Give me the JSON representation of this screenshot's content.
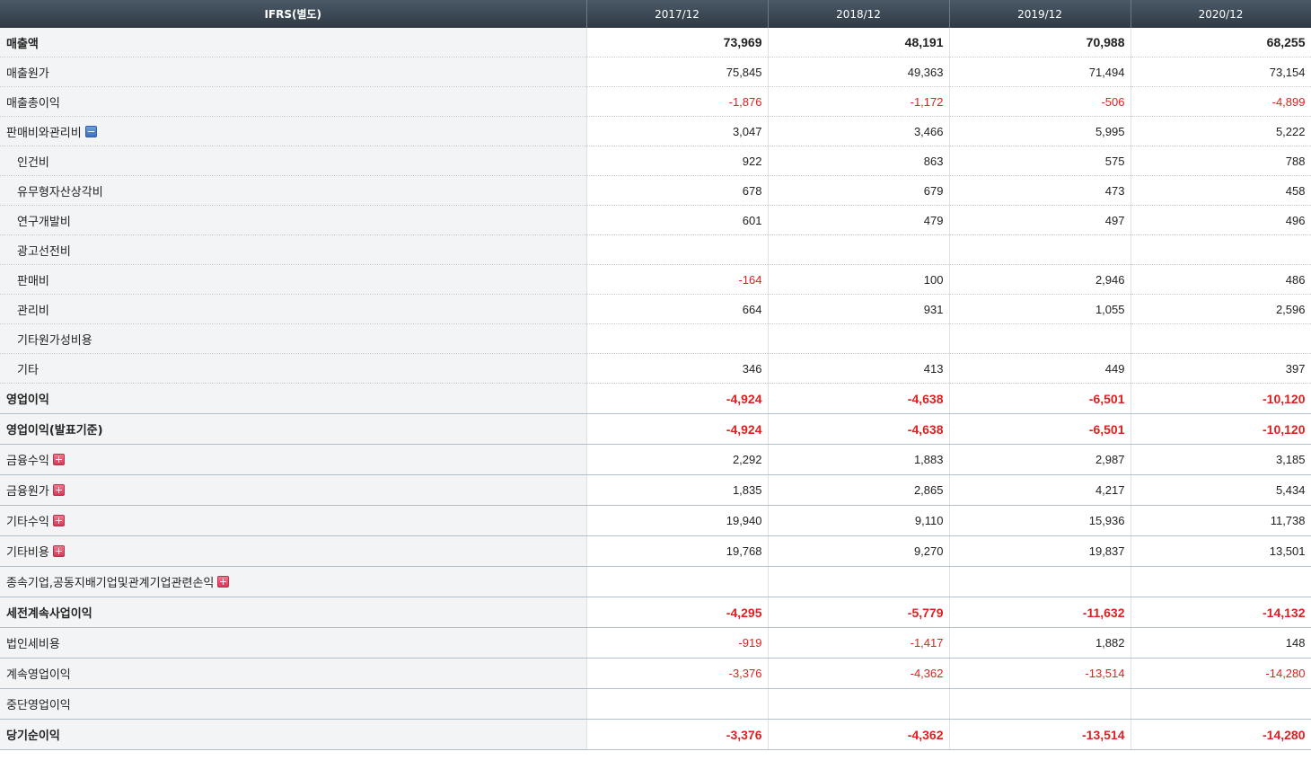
{
  "header": {
    "label": "IFRS(별도)",
    "periods": [
      "2017/12",
      "2018/12",
      "2019/12",
      "2020/12"
    ]
  },
  "rows": [
    {
      "label": "매출액",
      "values": [
        "73,969",
        "48,191",
        "70,988",
        "68,255"
      ]
    },
    {
      "label": "매출원가",
      "values": [
        "75,845",
        "49,363",
        "71,494",
        "73,154"
      ]
    },
    {
      "label": "매출총이익",
      "values": [
        "-1,876",
        "-1,172",
        "-506",
        "-4,899"
      ]
    },
    {
      "label": "판매비와관리비",
      "values": [
        "3,047",
        "3,466",
        "5,995",
        "5,222"
      ],
      "toggle": "collapse"
    },
    {
      "label": "인건비",
      "values": [
        "922",
        "863",
        "575",
        "788"
      ]
    },
    {
      "label": "유무형자산상각비",
      "values": [
        "678",
        "679",
        "473",
        "458"
      ]
    },
    {
      "label": "연구개발비",
      "values": [
        "601",
        "479",
        "497",
        "496"
      ]
    },
    {
      "label": "광고선전비",
      "values": [
        "",
        "",
        "",
        ""
      ]
    },
    {
      "label": "판매비",
      "values": [
        "-164",
        "100",
        "2,946",
        "486"
      ]
    },
    {
      "label": "관리비",
      "values": [
        "664",
        "931",
        "1,055",
        "2,596"
      ]
    },
    {
      "label": "기타원가성비용",
      "values": [
        "",
        "",
        "",
        ""
      ]
    },
    {
      "label": "기타",
      "values": [
        "346",
        "413",
        "449",
        "397"
      ]
    },
    {
      "label": "영업이익",
      "values": [
        "-4,924",
        "-4,638",
        "-6,501",
        "-10,120"
      ]
    },
    {
      "label": "영업이익(발표기준)",
      "values": [
        "-4,924",
        "-4,638",
        "-6,501",
        "-10,120"
      ]
    },
    {
      "label": "금융수익",
      "values": [
        "2,292",
        "1,883",
        "2,987",
        "3,185"
      ],
      "toggle": "expand"
    },
    {
      "label": "금융원가",
      "values": [
        "1,835",
        "2,865",
        "4,217",
        "5,434"
      ],
      "toggle": "expand"
    },
    {
      "label": "기타수익",
      "values": [
        "19,940",
        "9,110",
        "15,936",
        "11,738"
      ],
      "toggle": "expand"
    },
    {
      "label": "기타비용",
      "values": [
        "19,768",
        "9,270",
        "19,837",
        "13,501"
      ],
      "toggle": "expand"
    },
    {
      "label": "종속기업,공동지배기업및관계기업관련손익",
      "values": [
        "",
        "",
        "",
        ""
      ],
      "toggle": "expand"
    },
    {
      "label": "세전계속사업이익",
      "values": [
        "-4,295",
        "-5,779",
        "-11,632",
        "-14,132"
      ]
    },
    {
      "label": "법인세비용",
      "values": [
        "-919",
        "-1,417",
        "1,882",
        "148"
      ]
    },
    {
      "label": "계속영업이익",
      "values": [
        "-3,376",
        "-4,362",
        "-13,514",
        "-14,280"
      ]
    },
    {
      "label": "중단영업이익",
      "values": [
        "",
        "",
        "",
        ""
      ]
    },
    {
      "label": "당기순이익",
      "values": [
        "-3,376",
        "-4,362",
        "-13,514",
        "-14,280"
      ]
    }
  ],
  "colors": {
    "header_bg": "#2f3a45",
    "label_bg": "#f2f4f6",
    "negative": "#e02020",
    "collapse_icon": "#3c6fc0",
    "expand_icon": "#d23a58"
  }
}
